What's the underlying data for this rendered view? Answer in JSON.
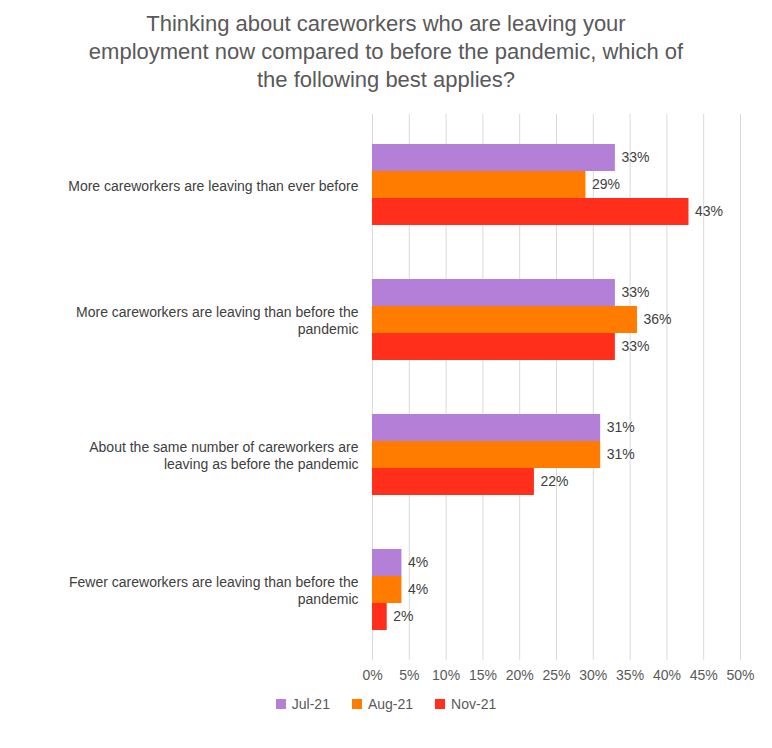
{
  "chart_data": {
    "type": "bar",
    "orientation": "horizontal",
    "title": "Thinking about careworkers who are leaving your employment now compared to before the pandemic, which of the following best applies?",
    "categories": [
      "More careworkers are leaving than ever before",
      "More careworkers are leaving than before the pandemic",
      "About the same number of careworkers are leaving as before the pandemic",
      "Fewer careworkers are leaving than before the pandemic"
    ],
    "series": [
      {
        "name": "Jul-21",
        "color": "#b47fd6",
        "values": [
          33,
          33,
          31,
          4
        ],
        "value_labels": [
          "33%",
          "33%",
          "31%",
          "4%"
        ]
      },
      {
        "name": "Aug-21",
        "color": "#ff7c00",
        "values": [
          29,
          36,
          31,
          4
        ],
        "value_labels": [
          "29%",
          "36%",
          "31%",
          "4%"
        ]
      },
      {
        "name": "Nov-21",
        "color": "#ff2f1c",
        "values": [
          43,
          33,
          22,
          2
        ],
        "value_labels": [
          "43%",
          "33%",
          "22%",
          "2%"
        ]
      }
    ],
    "xlim": [
      0,
      50
    ],
    "xticks": [
      {
        "value": 0,
        "label": "0%"
      },
      {
        "value": 5,
        "label": "5%"
      },
      {
        "value": 10,
        "label": "10%"
      },
      {
        "value": 15,
        "label": "15%"
      },
      {
        "value": 20,
        "label": "20%"
      },
      {
        "value": 25,
        "label": "25%"
      },
      {
        "value": 30,
        "label": "30%"
      },
      {
        "value": 35,
        "label": "35%"
      },
      {
        "value": 40,
        "label": "40%"
      },
      {
        "value": 45,
        "label": "45%"
      },
      {
        "value": 50,
        "label": "50%"
      }
    ],
    "grid": true,
    "data_labels": true,
    "legend": "bottom"
  }
}
